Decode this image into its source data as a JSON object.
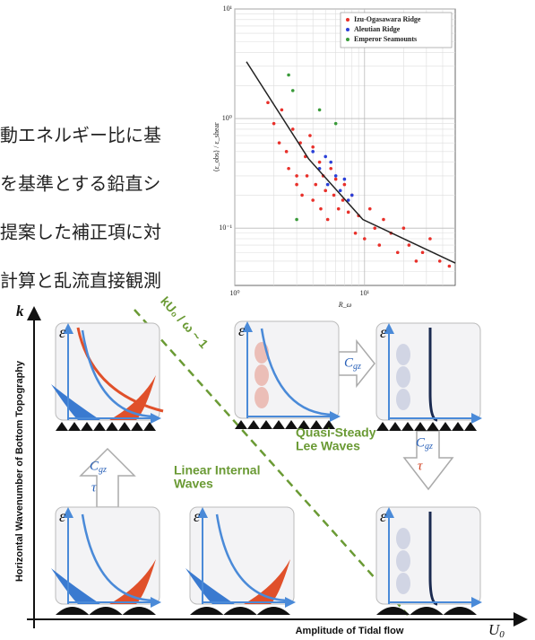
{
  "text_lines": [
    "動エネルギー比に基",
    "を基準とする鉛直シ",
    "提案した補正項に対",
    "計算と乱流直接観測"
  ],
  "chart_data": {
    "type": "scatter",
    "x_label": "R_ω",
    "y_label": "⟨ε_obs⟩ / ε_shear",
    "log_x": true,
    "log_y": true,
    "grid": true,
    "legend": "upper right",
    "xlim": [
      1,
      50
    ],
    "ylim": [
      0.03,
      10
    ],
    "xticks": [
      {
        "value": 1,
        "label": "10⁰"
      },
      {
        "value": 10,
        "label": "10¹"
      }
    ],
    "yticks": [
      {
        "value": 0.1,
        "label": "10⁻¹"
      },
      {
        "value": 1,
        "label": "10⁰"
      },
      {
        "value": 10,
        "label": "10¹"
      }
    ],
    "series": [
      {
        "name": "Izu-Ogasawara Ridge",
        "color": "#e8302a",
        "x": [
          1.8,
          2.0,
          2.2,
          2.3,
          2.5,
          2.6,
          2.8,
          3.0,
          3.0,
          3.2,
          3.3,
          3.5,
          3.6,
          3.8,
          4.0,
          4.0,
          4.2,
          4.5,
          4.6,
          4.8,
          5.0,
          5.2,
          5.5,
          5.8,
          6.0,
          6.3,
          6.8,
          7.0,
          7.5,
          8.0,
          8.5,
          9.0,
          10,
          11,
          12,
          13,
          14,
          16,
          18,
          20,
          22,
          25,
          28,
          32,
          38,
          45
        ],
        "values": [
          1.4,
          0.9,
          0.6,
          1.2,
          0.5,
          0.35,
          0.8,
          0.3,
          0.25,
          0.6,
          0.2,
          0.45,
          0.3,
          0.7,
          0.55,
          0.18,
          0.25,
          0.4,
          0.15,
          0.3,
          0.22,
          0.12,
          0.35,
          0.2,
          0.28,
          0.15,
          0.18,
          0.25,
          0.14,
          0.2,
          0.09,
          0.13,
          0.08,
          0.15,
          0.1,
          0.07,
          0.12,
          0.09,
          0.06,
          0.1,
          0.07,
          0.05,
          0.06,
          0.08,
          0.05,
          0.045
        ]
      },
      {
        "name": "Aleutian Ridge",
        "color": "#2a40d8",
        "x": [
          4.0,
          4.5,
          5.0,
          5.2,
          5.5,
          6.0,
          6.5,
          7.0,
          7.5,
          8.0
        ],
        "values": [
          0.5,
          0.35,
          0.45,
          0.25,
          0.4,
          0.3,
          0.22,
          0.28,
          0.18,
          0.2
        ]
      },
      {
        "name": "Emperor Seamounts",
        "color": "#3a9a3a",
        "x": [
          2.6,
          2.8,
          3.0,
          4.5,
          6.0
        ],
        "values": [
          2.5,
          1.8,
          0.12,
          1.2,
          0.9
        ]
      }
    ],
    "fit_line": {
      "color": "#222",
      "x": [
        1.23,
        3.7,
        9.7,
        50
      ],
      "values": [
        3.3,
        0.43,
        0.12,
        0.048
      ]
    }
  },
  "diagram": {
    "y_axis_label": "Horizontal Wavenumber of Bottom Topography",
    "y_axis_symbol": "k",
    "x_axis_label": "Amplitude of Tidal flow",
    "x_axis_symbol": "U",
    "x_axis_symbol_sub": "0",
    "dispersion_label": "kU₀ / ω ~ 1",
    "regime_linear": [
      "Linear Internal",
      "Waves"
    ],
    "regime_lee": [
      "Quasi-Steady",
      "Lee Waves"
    ],
    "panel_symbol": "ε",
    "flux_symbol": "C",
    "flux_sub": "gz",
    "stress_symbol": "τ"
  }
}
